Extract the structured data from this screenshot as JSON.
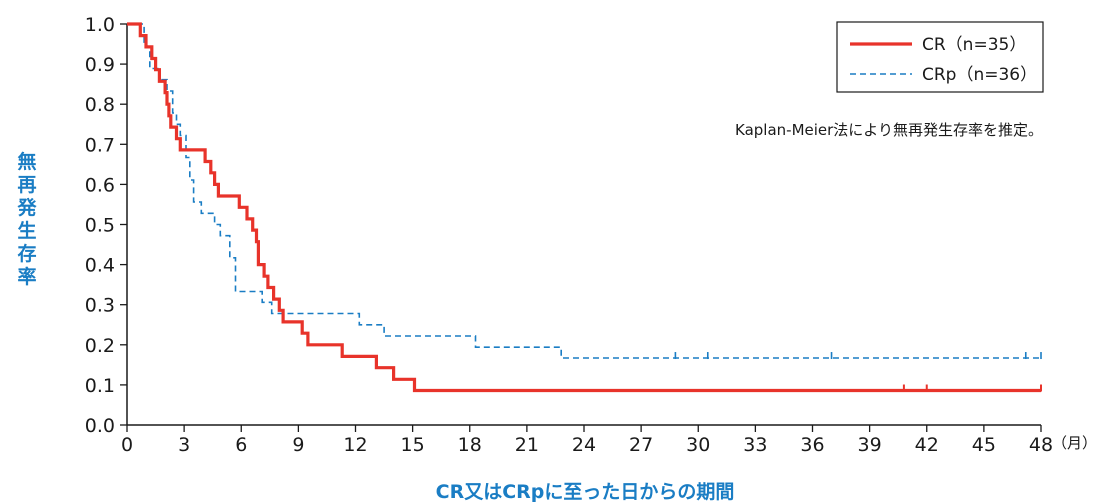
{
  "chart_data": {
    "type": "line",
    "step": true,
    "title": "",
    "annotation": "Kaplan-Meier法により無再発生存率を推定。",
    "xlabel": "CR又はCRpに至った日からの期間",
    "x_unit": "（月）",
    "ylabel": "無再発生存率",
    "xlim": [
      0,
      48
    ],
    "ylim": [
      0,
      1.0
    ],
    "x_ticks": [
      0,
      3,
      6,
      9,
      12,
      15,
      18,
      21,
      24,
      27,
      30,
      33,
      36,
      39,
      42,
      45,
      48
    ],
    "y_ticks": [
      "0.0",
      "0.1",
      "0.2",
      "0.3",
      "0.4",
      "0.5",
      "0.6",
      "0.7",
      "0.8",
      "0.9",
      "1.0"
    ],
    "grid": false,
    "legend_position": "top-right",
    "series": [
      {
        "name": "CR（n=35）",
        "color": "#e8332a",
        "dash": "solid",
        "points": [
          [
            0,
            1.0
          ],
          [
            0.7,
            1.0
          ],
          [
            0.7,
            0.971
          ],
          [
            1.0,
            0.971
          ],
          [
            1.0,
            0.943
          ],
          [
            1.3,
            0.943
          ],
          [
            1.3,
            0.914
          ],
          [
            1.5,
            0.914
          ],
          [
            1.5,
            0.886
          ],
          [
            1.7,
            0.886
          ],
          [
            1.7,
            0.857
          ],
          [
            2.0,
            0.857
          ],
          [
            2.0,
            0.829
          ],
          [
            2.1,
            0.829
          ],
          [
            2.1,
            0.8
          ],
          [
            2.2,
            0.8
          ],
          [
            2.2,
            0.771
          ],
          [
            2.3,
            0.771
          ],
          [
            2.3,
            0.743
          ],
          [
            2.6,
            0.743
          ],
          [
            2.6,
            0.714
          ],
          [
            2.8,
            0.714
          ],
          [
            2.8,
            0.686
          ],
          [
            4.1,
            0.686
          ],
          [
            4.1,
            0.657
          ],
          [
            4.4,
            0.657
          ],
          [
            4.4,
            0.629
          ],
          [
            4.6,
            0.629
          ],
          [
            4.6,
            0.6
          ],
          [
            4.8,
            0.6
          ],
          [
            4.8,
            0.571
          ],
          [
            5.9,
            0.571
          ],
          [
            5.9,
            0.543
          ],
          [
            6.3,
            0.543
          ],
          [
            6.3,
            0.514
          ],
          [
            6.6,
            0.514
          ],
          [
            6.6,
            0.486
          ],
          [
            6.8,
            0.486
          ],
          [
            6.8,
            0.457
          ],
          [
            6.9,
            0.457
          ],
          [
            6.9,
            0.4
          ],
          [
            7.2,
            0.4
          ],
          [
            7.2,
            0.371
          ],
          [
            7.4,
            0.371
          ],
          [
            7.4,
            0.343
          ],
          [
            7.7,
            0.343
          ],
          [
            7.7,
            0.314
          ],
          [
            8.0,
            0.314
          ],
          [
            8.0,
            0.286
          ],
          [
            8.2,
            0.286
          ],
          [
            8.2,
            0.257
          ],
          [
            9.2,
            0.257
          ],
          [
            9.2,
            0.229
          ],
          [
            9.5,
            0.229
          ],
          [
            9.5,
            0.2
          ],
          [
            11.3,
            0.2
          ],
          [
            11.3,
            0.171
          ],
          [
            13.1,
            0.171
          ],
          [
            13.1,
            0.143
          ],
          [
            14.0,
            0.143
          ],
          [
            14.0,
            0.114
          ],
          [
            15.1,
            0.114
          ],
          [
            15.1,
            0.086
          ],
          [
            48,
            0.086
          ]
        ],
        "censored_x": [
          40.8,
          42.0,
          48.0
        ]
      },
      {
        "name": "CRp（n=36）",
        "color": "#1a7dc4",
        "dash": "dashed",
        "points": [
          [
            0,
            1.0
          ],
          [
            0.9,
            1.0
          ],
          [
            0.9,
            0.944
          ],
          [
            1.2,
            0.944
          ],
          [
            1.2,
            0.889
          ],
          [
            1.7,
            0.889
          ],
          [
            1.7,
            0.861
          ],
          [
            2.1,
            0.861
          ],
          [
            2.1,
            0.833
          ],
          [
            2.4,
            0.833
          ],
          [
            2.4,
            0.778
          ],
          [
            2.6,
            0.778
          ],
          [
            2.6,
            0.75
          ],
          [
            2.8,
            0.75
          ],
          [
            2.8,
            0.722
          ],
          [
            3.1,
            0.722
          ],
          [
            3.1,
            0.667
          ],
          [
            3.3,
            0.667
          ],
          [
            3.3,
            0.611
          ],
          [
            3.5,
            0.611
          ],
          [
            3.5,
            0.556
          ],
          [
            3.9,
            0.556
          ],
          [
            3.9,
            0.528
          ],
          [
            4.6,
            0.528
          ],
          [
            4.6,
            0.5
          ],
          [
            4.9,
            0.5
          ],
          [
            4.9,
            0.472
          ],
          [
            5.4,
            0.472
          ],
          [
            5.4,
            0.417
          ],
          [
            5.7,
            0.417
          ],
          [
            5.7,
            0.333
          ],
          [
            7.1,
            0.333
          ],
          [
            7.1,
            0.306
          ],
          [
            7.6,
            0.306
          ],
          [
            7.6,
            0.278
          ],
          [
            12.2,
            0.278
          ],
          [
            12.2,
            0.25
          ],
          [
            13.5,
            0.25
          ],
          [
            13.5,
            0.222
          ],
          [
            18.3,
            0.222
          ],
          [
            18.3,
            0.194
          ],
          [
            22.8,
            0.194
          ],
          [
            22.8,
            0.167
          ],
          [
            48,
            0.167
          ]
        ],
        "censored_x": [
          28.8,
          30.5,
          37.0,
          47.2,
          48.0
        ]
      }
    ],
    "axis_color": "#1a1a1a",
    "label_color": "#1a7dc4"
  }
}
